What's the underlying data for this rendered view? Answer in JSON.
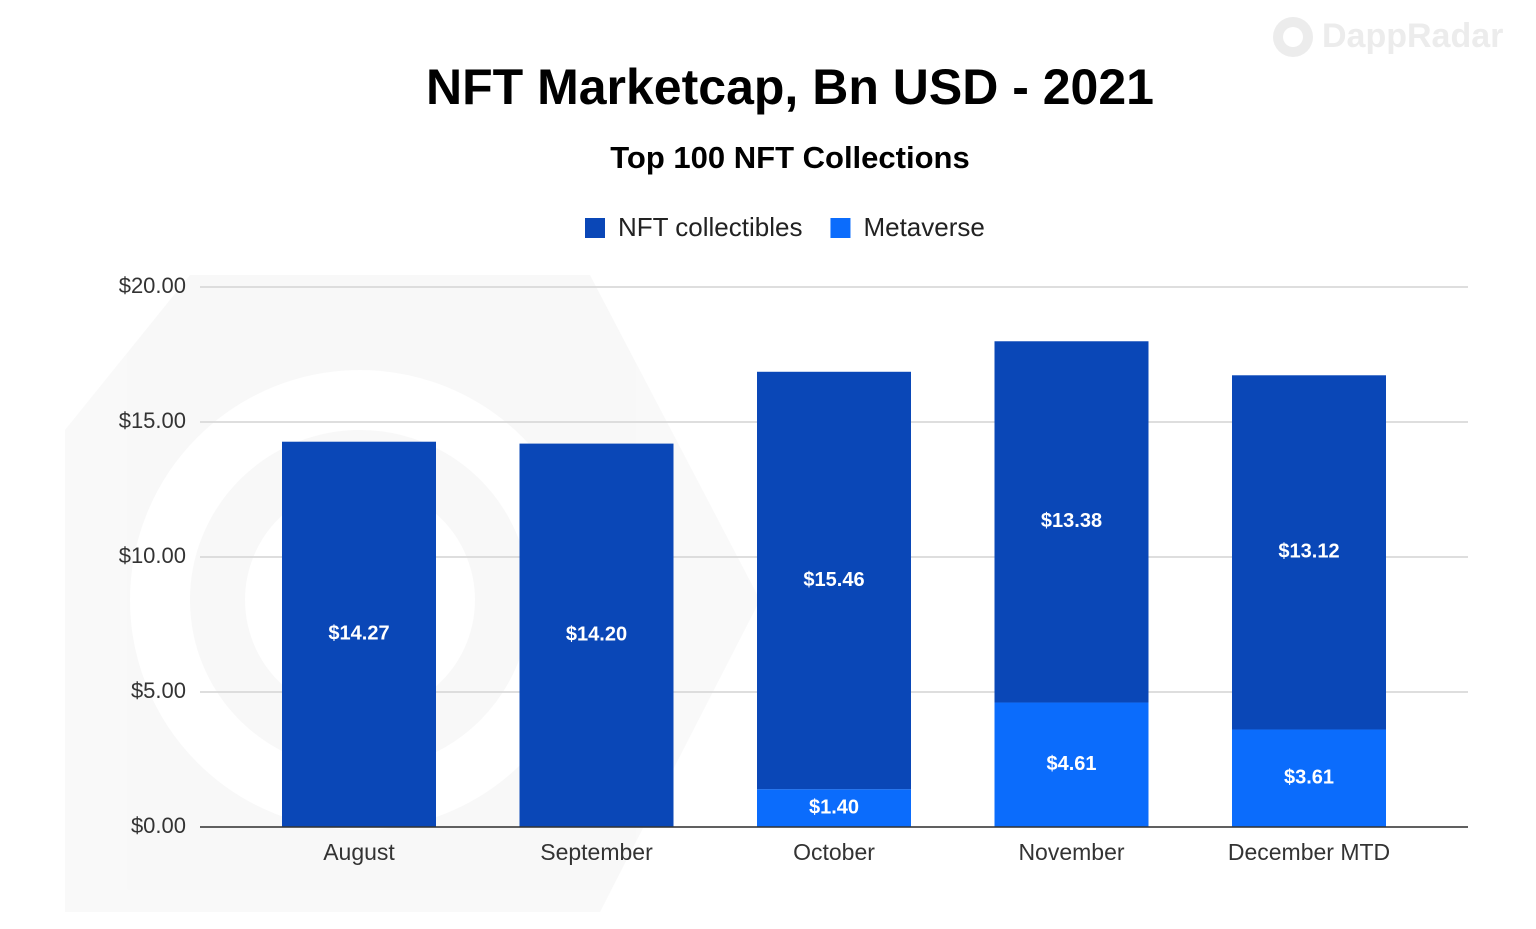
{
  "chart_data": {
    "type": "bar",
    "stacked": true,
    "title": "NFT Marketcap, Bn USD - 2021",
    "subtitle": "Top 100 NFT Collections",
    "watermark": "DappRadar",
    "categories": [
      "August",
      "September",
      "October",
      "November",
      "December MTD"
    ],
    "series": [
      {
        "name": "NFT collectibles",
        "color": "#0a47b7",
        "values": [
          14.27,
          14.2,
          15.46,
          13.38,
          13.12
        ],
        "value_labels": [
          "$14.27",
          "$14.20",
          "$15.46",
          "$13.38",
          "$13.12"
        ]
      },
      {
        "name": "Metaverse",
        "color": "#0b6cfc",
        "values": [
          null,
          null,
          1.4,
          4.61,
          3.61
        ],
        "value_labels": [
          null,
          null,
          "$1.40",
          "$4.61",
          "$3.61"
        ]
      }
    ],
    "ylim": [
      0,
      20
    ],
    "yticks": [
      {
        "value": 0,
        "label": "$0.00"
      },
      {
        "value": 5,
        "label": "$5.00"
      },
      {
        "value": 10,
        "label": "$10.00"
      },
      {
        "value": 15,
        "label": "$15.00"
      },
      {
        "value": 20,
        "label": "$20.00"
      }
    ],
    "grid": true,
    "legend": "top"
  }
}
